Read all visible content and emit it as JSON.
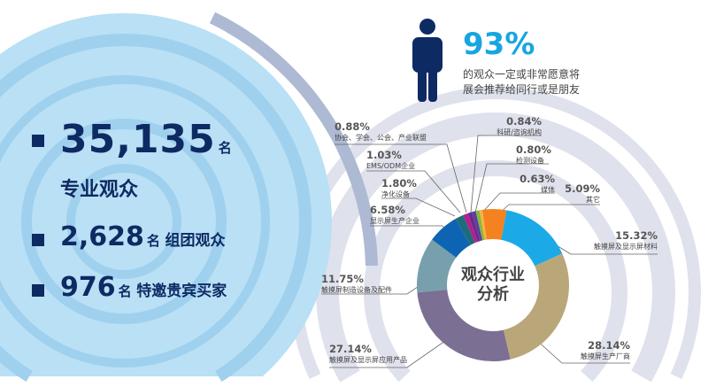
{
  "stats": [
    {
      "value": "35,135",
      "unit": "名",
      "label": "专业观众"
    },
    {
      "value": "2,628",
      "unit": "名",
      "label": "组团观众"
    },
    {
      "value": "976",
      "unit": "名",
      "label": "特邀贵宾买家"
    }
  ],
  "recommend": {
    "percent": "93%",
    "text_line1": "的观众一定或非常愿意将",
    "text_line2": "展会推荐给同行或是朋友",
    "icon": "person-icon"
  },
  "colors": {
    "navy": "#0e2a63",
    "accent": "#16a5e1"
  },
  "chart_data": {
    "type": "pie",
    "donut": true,
    "title": "观众行业分析",
    "title_line1": "观众行业",
    "title_line2": "分析",
    "slices": [
      {
        "label": "其它",
        "value": 5.09,
        "display": "5.09%",
        "color": "#f58220"
      },
      {
        "label": "触摸屏及显示屏材料",
        "value": 15.32,
        "display": "15.32%",
        "color": "#1ba9e8"
      },
      {
        "label": "触摸屏生产厂商",
        "value": 28.14,
        "display": "28.14%",
        "color": "#b9a77a"
      },
      {
        "label": "触摸屏及显示屏应用产品",
        "value": 27.14,
        "display": "27.14%",
        "color": "#7c6f94"
      },
      {
        "label": "触摸屏制造设备及配件",
        "value": 11.75,
        "display": "11.75%",
        "color": "#77a0ac"
      },
      {
        "label": "显示屏生产企业",
        "value": 6.58,
        "display": "6.58%",
        "color": "#0d64b3"
      },
      {
        "label": "净化设备",
        "value": 1.8,
        "display": "1.80%",
        "color": "#1d6c7c"
      },
      {
        "label": "EMS/ODM企业",
        "value": 1.03,
        "display": "1.03%",
        "color": "#b3208d"
      },
      {
        "label": "协会、学会、公会、产业联盟",
        "value": 0.88,
        "display": "0.88%",
        "color": "#6c2b8a"
      },
      {
        "label": "科研/咨询机构",
        "value": 0.84,
        "display": "0.84%",
        "color": "#5a3fa0"
      },
      {
        "label": "检测设备",
        "value": 0.8,
        "display": "0.80%",
        "color": "#8cb63c"
      },
      {
        "label": "媒体",
        "value": 0.63,
        "display": "0.63%",
        "color": "#f6b33f"
      }
    ]
  }
}
